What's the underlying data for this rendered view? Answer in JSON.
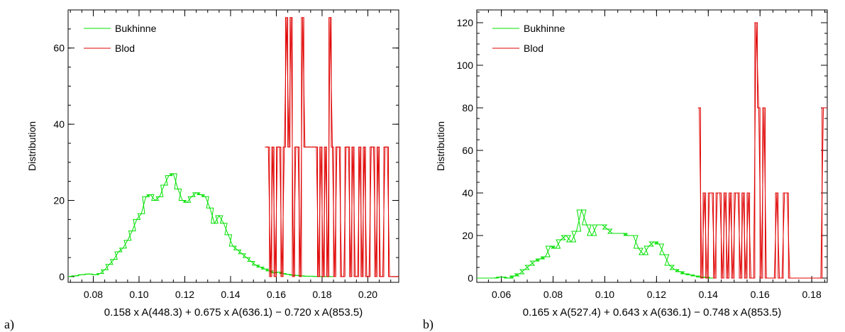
{
  "chart_data": [
    {
      "id": "a",
      "type": "line",
      "panel_label": "a)",
      "title": "",
      "xlabel": "0.158 x A(448.3) + 0.675 x A(636.1) − 0.720 x A(853.5)",
      "ylabel": "Distribution",
      "xlim": [
        0.069,
        0.2135
      ],
      "ylim": [
        -1.5,
        70
      ],
      "xticks": [
        0.08,
        0.1,
        0.12,
        0.14,
        0.16,
        0.18,
        0.2
      ],
      "xtick_labels": [
        "0.08",
        "0.10",
        "0.12",
        "0.14",
        "0.16",
        "0.18",
        "0.20"
      ],
      "yticks": [
        0,
        20,
        40,
        60
      ],
      "ytick_labels": [
        "0",
        "20",
        "40",
        "60"
      ],
      "grid": false,
      "legend_position": "top-left",
      "series": [
        {
          "name": "Bukhinne",
          "color": "#00e000",
          "x": [
            0.069,
            0.072,
            0.075,
            0.078,
            0.081,
            0.083,
            0.085,
            0.087,
            0.089,
            0.091,
            0.093,
            0.095,
            0.097,
            0.099,
            0.101,
            0.103,
            0.105,
            0.107,
            0.109,
            0.111,
            0.113,
            0.115,
            0.117,
            0.119,
            0.121,
            0.123,
            0.125,
            0.127,
            0.129,
            0.131,
            0.133,
            0.135,
            0.137,
            0.139,
            0.141,
            0.143,
            0.145,
            0.147,
            0.149,
            0.151,
            0.153,
            0.155,
            0.157,
            0.159,
            0.161,
            0.163,
            0.165,
            0.167,
            0.169,
            0.171,
            0.173,
            0.175,
            0.178,
            0.181,
            0.184
          ],
          "y": [
            0,
            0.2,
            0.5,
            0.7,
            0.5,
            0.8,
            1.8,
            3.2,
            4.5,
            6.5,
            7.5,
            9.5,
            12,
            15,
            16.5,
            21,
            21.5,
            20,
            21,
            24,
            26.5,
            27,
            23,
            20,
            19.5,
            21,
            22,
            21.5,
            21,
            18,
            14,
            16,
            14,
            11,
            8,
            7,
            6,
            5,
            4,
            3,
            2.5,
            2,
            1.5,
            1,
            1.2,
            0.8,
            0.6,
            0.4,
            0.3,
            0.2,
            0.1,
            0.1,
            0,
            0,
            0
          ]
        },
        {
          "name": "Blod",
          "color": "#e00000",
          "x": [
            0.1555,
            0.1565,
            0.1575,
            0.1585,
            0.1595,
            0.1605,
            0.1615,
            0.1625,
            0.1635,
            0.1645,
            0.1655,
            0.1665,
            0.1675,
            0.1685,
            0.1695,
            0.1705,
            0.1715,
            0.1725,
            0.1735,
            0.1745,
            0.1755,
            0.1765,
            0.1775,
            0.1785,
            0.1795,
            0.1805,
            0.1815,
            0.1825,
            0.1835,
            0.1845,
            0.1855,
            0.1865,
            0.1875,
            0.1885,
            0.1895,
            0.1905,
            0.1915,
            0.1925,
            0.1935,
            0.1945,
            0.1955,
            0.1965,
            0.1975,
            0.1985,
            0.1995,
            0.2005,
            0.2015,
            0.2025,
            0.2035,
            0.2045,
            0.2055,
            0.2065,
            0.2075,
            0.2085,
            0.2095,
            0.2105,
            0.2115,
            0.2125,
            0.2135
          ],
          "y": [
            34,
            34,
            0,
            34,
            0,
            34,
            34,
            0,
            34,
            68,
            34,
            68,
            0,
            34,
            34,
            0,
            68,
            34,
            34,
            34,
            34,
            34,
            34,
            0,
            34,
            0,
            34,
            0,
            68,
            34,
            0,
            34,
            34,
            0,
            0,
            34,
            34,
            0,
            34,
            0,
            0,
            34,
            0,
            34,
            0,
            0,
            34,
            34,
            0,
            34,
            0,
            0,
            34,
            34,
            0,
            0,
            0,
            0,
            0
          ]
        }
      ]
    },
    {
      "id": "b",
      "type": "line",
      "panel_label": "b)",
      "title": "",
      "xlabel": "0.165 x A(527.4) + 0.643 x A(636.1) − 0.748 x A(853.5)",
      "ylabel": "Distribution",
      "xlim": [
        0.0505,
        0.186
      ],
      "ylim": [
        -2,
        126
      ],
      "xticks": [
        0.06,
        0.08,
        0.1,
        0.12,
        0.14,
        0.16,
        0.18
      ],
      "xtick_labels": [
        "0.06",
        "0.08",
        "0.10",
        "0.12",
        "0.14",
        "0.16",
        "0.18"
      ],
      "yticks": [
        0,
        20,
        40,
        60,
        80,
        100,
        120
      ],
      "ytick_labels": [
        "0",
        "20",
        "40",
        "60",
        "80",
        "100",
        "120"
      ],
      "grid": false,
      "legend_position": "top-left",
      "series": [
        {
          "name": "Bukhinne",
          "color": "#00e000",
          "x": [
            0.0505,
            0.054,
            0.057,
            0.06,
            0.063,
            0.065,
            0.067,
            0.069,
            0.071,
            0.073,
            0.075,
            0.077,
            0.079,
            0.081,
            0.083,
            0.085,
            0.087,
            0.089,
            0.091,
            0.093,
            0.095,
            0.097,
            0.099,
            0.101,
            0.103,
            0.105,
            0.107,
            0.109,
            0.111,
            0.113,
            0.115,
            0.117,
            0.119,
            0.121,
            0.123,
            0.125,
            0.127,
            0.129,
            0.131,
            0.133,
            0.135,
            0.137,
            0.139,
            0.141
          ],
          "y": [
            0,
            0,
            0,
            0.5,
            0,
            1,
            2,
            4,
            6,
            8,
            9,
            10,
            15,
            14,
            18,
            20,
            17,
            22,
            32,
            25,
            20,
            25,
            25,
            23,
            21,
            21,
            21,
            20,
            20,
            14,
            11,
            15,
            17,
            16,
            11,
            6,
            4,
            3,
            2,
            1.5,
            1,
            0.5,
            0.3,
            0
          ]
        },
        {
          "name": "Blod",
          "color": "#e00000",
          "x": [
            0.1365,
            0.1375,
            0.1385,
            0.1395,
            0.1405,
            0.1415,
            0.1425,
            0.1435,
            0.1445,
            0.1455,
            0.1465,
            0.1475,
            0.1485,
            0.1495,
            0.1505,
            0.1515,
            0.1525,
            0.1535,
            0.1545,
            0.1555,
            0.1565,
            0.1575,
            0.1585,
            0.1595,
            0.1605,
            0.1615,
            0.1625,
            0.1635,
            0.1645,
            0.1655,
            0.1665,
            0.1675,
            0.1685,
            0.1695,
            0.1705,
            0.1715,
            0.1725,
            0.1735,
            0.1745,
            0.1755,
            0.1765,
            0.1775,
            0.1785,
            0.1795,
            0.1805,
            0.1815,
            0.1825,
            0.1835,
            0.1845,
            0.1855
          ],
          "y": [
            80,
            0,
            40,
            0,
            40,
            40,
            0,
            40,
            40,
            0,
            40,
            0,
            40,
            0,
            40,
            40,
            0,
            40,
            0,
            40,
            0,
            0,
            120,
            80,
            0,
            80,
            0,
            0,
            0,
            0,
            40,
            0,
            0,
            40,
            40,
            0,
            0,
            0,
            0,
            0,
            0,
            0,
            0,
            0,
            0,
            0,
            0,
            0,
            80,
            80
          ]
        }
      ]
    }
  ]
}
